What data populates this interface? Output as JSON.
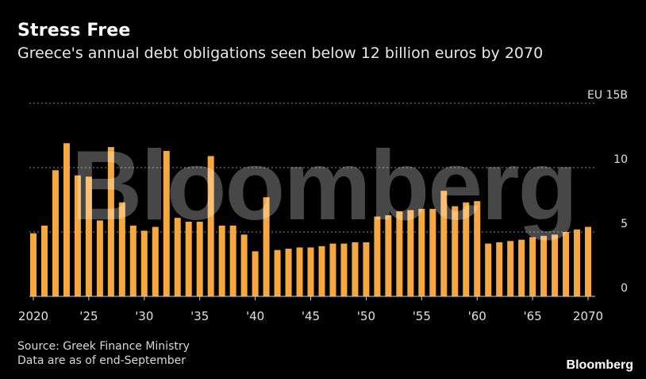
{
  "title": "Stress Free",
  "subtitle": "Greece's annual debt obligations seen below 12 billion euros by 2070",
  "source_lines": [
    "Source: Greek Finance Ministry",
    "Data are as of end-September"
  ],
  "brand": "Bloomberg",
  "watermark": "Bloomberg",
  "colors": {
    "bar": "#f5a742",
    "background": "#000000",
    "grid": "#8a8a8a",
    "text": "#ffffff"
  },
  "chart_data": {
    "type": "bar",
    "unit_label": "EU 15B",
    "ylim": [
      0,
      15
    ],
    "yticks": [
      {
        "value": 0,
        "label": "0"
      },
      {
        "value": 5,
        "label": "5"
      },
      {
        "value": 10,
        "label": "10"
      },
      {
        "value": 15,
        "label": "EU 15B"
      }
    ],
    "xticks": [
      {
        "year": 2020,
        "label": "2020"
      },
      {
        "year": 2025,
        "label": "'25"
      },
      {
        "year": 2030,
        "label": "'30"
      },
      {
        "year": 2035,
        "label": "'35"
      },
      {
        "year": 2040,
        "label": "'40"
      },
      {
        "year": 2045,
        "label": "'45"
      },
      {
        "year": 2050,
        "label": "'50"
      },
      {
        "year": 2055,
        "label": "'55"
      },
      {
        "year": 2060,
        "label": "'60"
      },
      {
        "year": 2065,
        "label": "'65"
      },
      {
        "year": 2070,
        "label": "2070"
      }
    ],
    "grid": true,
    "categories": [
      2020,
      2021,
      2022,
      2023,
      2024,
      2025,
      2026,
      2027,
      2028,
      2029,
      2030,
      2031,
      2032,
      2033,
      2034,
      2035,
      2036,
      2037,
      2038,
      2039,
      2040,
      2041,
      2042,
      2043,
      2044,
      2045,
      2046,
      2047,
      2048,
      2049,
      2050,
      2051,
      2052,
      2053,
      2054,
      2055,
      2056,
      2057,
      2058,
      2059,
      2060,
      2061,
      2062,
      2063,
      2064,
      2065,
      2066,
      2067,
      2068,
      2069,
      2070
    ],
    "values": [
      4.9,
      5.5,
      9.8,
      11.9,
      9.4,
      9.3,
      5.9,
      11.6,
      7.3,
      5.5,
      5.1,
      5.4,
      11.3,
      6.1,
      5.8,
      5.8,
      10.9,
      5.5,
      5.5,
      4.8,
      3.5,
      7.7,
      3.6,
      3.7,
      3.8,
      3.8,
      3.9,
      4.1,
      4.1,
      4.2,
      4.2,
      6.2,
      6.3,
      6.6,
      6.7,
      6.8,
      6.8,
      8.2,
      7.0,
      7.3,
      7.4,
      4.1,
      4.2,
      4.3,
      4.4,
      4.6,
      4.7,
      4.8,
      5.0,
      5.2,
      5.4
    ]
  }
}
